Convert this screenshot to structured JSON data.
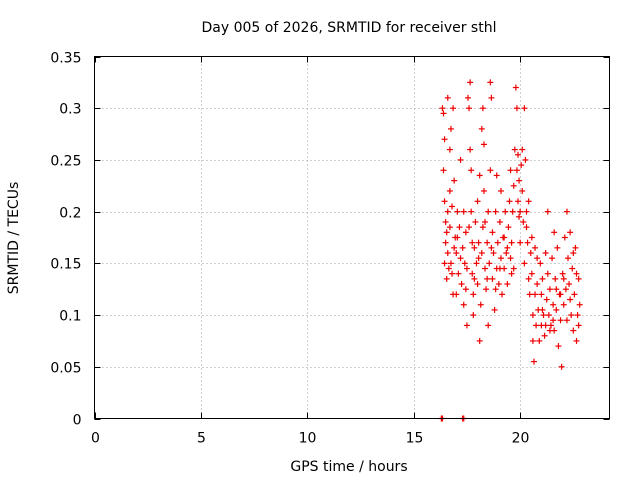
{
  "chart_data": {
    "type": "scatter",
    "title": "Day 005 of 2026, SRMTID for receiver sthl",
    "xlabel": "GPS time / hours",
    "ylabel": "SRMTID / TECUs",
    "xlim": [
      0,
      24.2
    ],
    "ylim": [
      0,
      0.35
    ],
    "x_ticks": [
      0,
      5,
      10,
      15,
      20
    ],
    "x_tick_labels": [
      "0",
      "5",
      "10",
      "15",
      "20"
    ],
    "y_ticks": [
      0,
      0.05,
      0.1,
      0.15,
      0.2,
      0.25,
      0.3,
      0.35
    ],
    "y_tick_labels": [
      "0",
      "0.05",
      "0.1",
      "0.15",
      "0.2",
      "0.25",
      "0.3",
      "0.35"
    ],
    "grid": true,
    "marker": "+",
    "color": "#ee0000",
    "series": [
      {
        "points": [
          [
            16.3,
            0.0
          ],
          [
            16.35,
            0.0
          ],
          [
            17.3,
            0.0
          ],
          [
            17.35,
            0.0
          ],
          [
            16.35,
            0.3
          ],
          [
            16.4,
            0.295
          ],
          [
            16.45,
            0.27
          ],
          [
            16.4,
            0.24
          ],
          [
            16.45,
            0.21
          ],
          [
            16.5,
            0.19
          ],
          [
            16.55,
            0.18
          ],
          [
            16.5,
            0.17
          ],
          [
            16.6,
            0.2
          ],
          [
            16.6,
            0.16
          ],
          [
            16.7,
            0.22
          ],
          [
            16.7,
            0.185
          ],
          [
            16.75,
            0.15
          ],
          [
            16.8,
            0.14
          ],
          [
            16.8,
            0.205
          ],
          [
            16.85,
            0.12
          ],
          [
            16.6,
            0.31
          ],
          [
            16.7,
            0.26
          ],
          [
            16.75,
            0.28
          ],
          [
            16.85,
            0.3
          ],
          [
            16.9,
            0.23
          ],
          [
            16.95,
            0.175
          ],
          [
            17.0,
            0.16
          ],
          [
            17.0,
            0.12
          ],
          [
            17.05,
            0.2
          ],
          [
            17.1,
            0.14
          ],
          [
            17.15,
            0.185
          ],
          [
            17.2,
            0.25
          ],
          [
            17.25,
            0.13
          ],
          [
            17.3,
            0.165
          ],
          [
            17.35,
            0.2
          ],
          [
            17.35,
            0.11
          ],
          [
            17.4,
            0.15
          ],
          [
            17.45,
            0.18
          ],
          [
            17.5,
            0.145
          ],
          [
            17.5,
            0.09
          ],
          [
            17.55,
            0.31
          ],
          [
            17.6,
            0.3
          ],
          [
            17.65,
            0.325
          ],
          [
            17.65,
            0.26
          ],
          [
            17.7,
            0.24
          ],
          [
            17.7,
            0.2
          ],
          [
            17.75,
            0.17
          ],
          [
            17.75,
            0.14
          ],
          [
            17.8,
            0.12
          ],
          [
            17.8,
            0.1
          ],
          [
            17.85,
            0.165
          ],
          [
            17.9,
            0.19
          ],
          [
            17.95,
            0.15
          ],
          [
            18.0,
            0.21
          ],
          [
            18.0,
            0.13
          ],
          [
            18.05,
            0.17
          ],
          [
            18.1,
            0.075
          ],
          [
            18.1,
            0.235
          ],
          [
            18.15,
            0.11
          ],
          [
            18.2,
            0.16
          ],
          [
            18.2,
            0.28
          ],
          [
            18.25,
            0.3
          ],
          [
            18.3,
            0.265
          ],
          [
            18.3,
            0.22
          ],
          [
            18.35,
            0.19
          ],
          [
            18.35,
            0.145
          ],
          [
            18.4,
            0.125
          ],
          [
            18.45,
            0.17
          ],
          [
            18.5,
            0.2
          ],
          [
            18.5,
            0.09
          ],
          [
            18.55,
            0.15
          ],
          [
            18.6,
            0.325
          ],
          [
            18.6,
            0.24
          ],
          [
            18.65,
            0.31
          ],
          [
            18.7,
            0.18
          ],
          [
            18.7,
            0.135
          ],
          [
            18.75,
            0.16
          ],
          [
            18.8,
            0.105
          ],
          [
            18.85,
            0.2
          ],
          [
            18.9,
            0.145
          ],
          [
            18.9,
            0.235
          ],
          [
            18.95,
            0.17
          ],
          [
            19.0,
            0.13
          ],
          [
            19.05,
            0.19
          ],
          [
            19.1,
            0.155
          ],
          [
            19.1,
            0.22
          ],
          [
            19.15,
            0.12
          ],
          [
            19.2,
            0.175
          ],
          [
            19.25,
            0.145
          ],
          [
            19.3,
            0.2
          ],
          [
            19.35,
            0.16
          ],
          [
            19.4,
            0.13
          ],
          [
            19.45,
            0.185
          ],
          [
            19.5,
            0.21
          ],
          [
            19.55,
            0.24
          ],
          [
            19.6,
            0.17
          ],
          [
            19.6,
            0.14
          ],
          [
            19.65,
            0.2
          ],
          [
            19.7,
            0.225
          ],
          [
            19.75,
            0.26
          ],
          [
            19.8,
            0.32
          ],
          [
            19.85,
            0.3
          ],
          [
            19.85,
            0.24
          ],
          [
            19.9,
            0.255
          ],
          [
            19.9,
            0.21
          ],
          [
            19.95,
            0.23
          ],
          [
            20.0,
            0.2
          ],
          [
            20.0,
            0.17
          ],
          [
            20.05,
            0.245
          ],
          [
            20.1,
            0.26
          ],
          [
            20.1,
            0.22
          ],
          [
            20.15,
            0.19
          ],
          [
            20.2,
            0.3
          ],
          [
            20.2,
            0.15
          ],
          [
            20.25,
            0.25
          ],
          [
            20.3,
            0.2
          ],
          [
            20.35,
            0.17
          ],
          [
            20.4,
            0.135
          ],
          [
            20.4,
            0.21
          ],
          [
            20.45,
            0.12
          ],
          [
            20.5,
            0.16
          ],
          [
            20.55,
            0.14
          ],
          [
            20.6,
            0.1
          ],
          [
            20.6,
            0.075
          ],
          [
            20.65,
            0.055
          ],
          [
            20.7,
            0.12
          ],
          [
            20.7,
            0.165
          ],
          [
            20.75,
            0.09
          ],
          [
            20.8,
            0.13
          ],
          [
            20.85,
            0.105
          ],
          [
            20.9,
            0.075
          ],
          [
            20.95,
            0.15
          ],
          [
            21.0,
            0.12
          ],
          [
            21.0,
            0.09
          ],
          [
            21.05,
            0.135
          ],
          [
            21.1,
            0.1
          ],
          [
            21.15,
            0.08
          ],
          [
            21.2,
            0.16
          ],
          [
            21.25,
            0.115
          ],
          [
            21.3,
            0.2
          ],
          [
            21.3,
            0.14
          ],
          [
            21.35,
            0.1
          ],
          [
            21.4,
            0.125
          ],
          [
            21.45,
            0.09
          ],
          [
            21.5,
            0.155
          ],
          [
            21.55,
            0.11
          ],
          [
            21.6,
            0.18
          ],
          [
            21.6,
            0.085
          ],
          [
            21.65,
            0.135
          ],
          [
            21.7,
            0.105
          ],
          [
            21.75,
            0.165
          ],
          [
            21.8,
            0.07
          ],
          [
            21.85,
            0.12
          ],
          [
            21.9,
            0.095
          ],
          [
            21.95,
            0.05
          ],
          [
            22.0,
            0.14
          ],
          [
            22.05,
            0.11
          ],
          [
            22.1,
            0.175
          ],
          [
            22.15,
            0.125
          ],
          [
            22.2,
            0.2
          ],
          [
            22.25,
            0.155
          ],
          [
            22.3,
            0.13
          ],
          [
            22.35,
            0.18
          ],
          [
            22.4,
            0.1
          ],
          [
            22.45,
            0.145
          ],
          [
            22.5,
            0.085
          ],
          [
            22.55,
            0.12
          ],
          [
            22.6,
            0.165
          ],
          [
            22.65,
            0.075
          ],
          [
            22.7,
            0.1
          ],
          [
            22.75,
            0.135
          ],
          [
            22.8,
            0.11
          ],
          [
            16.45,
            0.15
          ],
          [
            16.55,
            0.135
          ],
          [
            16.65,
            0.145
          ],
          [
            16.9,
            0.165
          ],
          [
            17.05,
            0.175
          ],
          [
            17.2,
            0.155
          ],
          [
            17.45,
            0.125
          ],
          [
            17.6,
            0.185
          ],
          [
            17.85,
            0.135
          ],
          [
            18.05,
            0.155
          ],
          [
            18.25,
            0.185
          ],
          [
            18.45,
            0.135
          ],
          [
            18.65,
            0.165
          ],
          [
            18.85,
            0.125
          ],
          [
            19.05,
            0.145
          ],
          [
            19.25,
            0.175
          ],
          [
            19.4,
            0.165
          ],
          [
            19.55,
            0.155
          ],
          [
            19.7,
            0.145
          ],
          [
            19.95,
            0.195
          ],
          [
            20.3,
            0.185
          ],
          [
            20.55,
            0.175
          ],
          [
            20.8,
            0.155
          ],
          [
            21.05,
            0.105
          ],
          [
            21.2,
            0.09
          ],
          [
            21.4,
            0.085
          ],
          [
            21.55,
            0.095
          ],
          [
            21.7,
            0.125
          ],
          [
            21.9,
            0.12
          ],
          [
            22.05,
            0.135
          ],
          [
            22.2,
            0.095
          ],
          [
            22.35,
            0.115
          ],
          [
            22.5,
            0.16
          ],
          [
            22.65,
            0.14
          ],
          [
            22.75,
            0.09
          ]
        ]
      }
    ]
  }
}
